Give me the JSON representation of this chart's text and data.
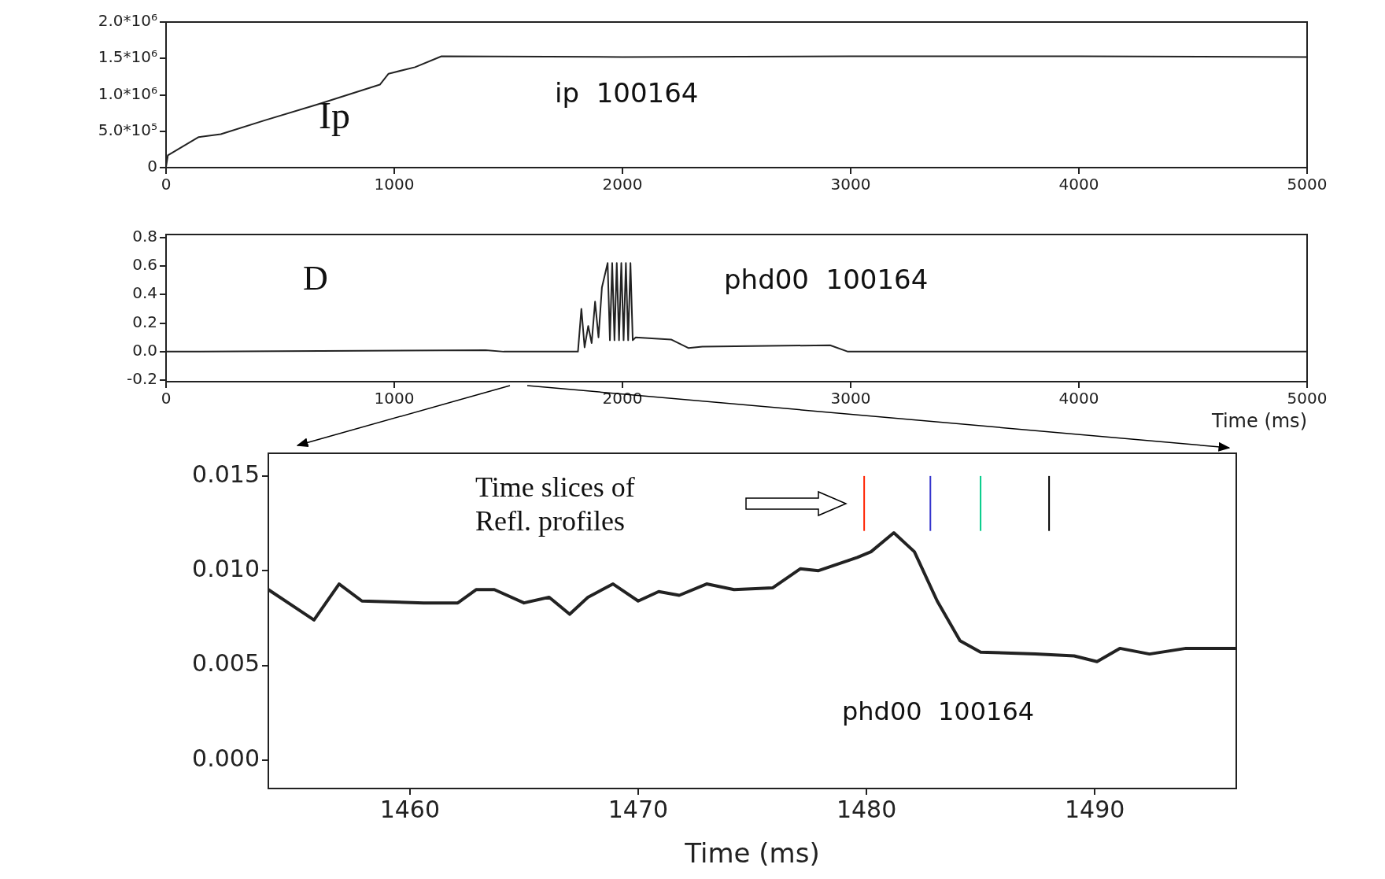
{
  "chart_data": [
    {
      "type": "line",
      "annotations": [
        "Ip",
        "ip  100164"
      ],
      "xlim": [
        0,
        5000
      ],
      "xticks": [
        0,
        1000,
        2000,
        3000,
        4000,
        5000
      ],
      "ylim": [
        0,
        2000000
      ],
      "yticks": [
        {
          "value": 0,
          "label": "0"
        },
        {
          "value": 500000,
          "label": "5.0*10⁵"
        },
        {
          "value": 1000000,
          "label": "1.0*10⁶"
        },
        {
          "value": 1500000,
          "label": "1.5*10⁶"
        },
        {
          "value": 2000000,
          "label": "2.0*10⁶"
        }
      ],
      "grid": false,
      "legend": false,
      "series": [
        {
          "color": "#222222",
          "x": [
            0,
            8,
            143,
            240,
            433,
            666,
            937,
            975,
            1091,
            1207,
            2000,
            3000,
            4000,
            5000
          ],
          "values": [
            10000,
            170000,
            420000,
            460000,
            650000,
            870000,
            1140000,
            1290000,
            1380000,
            1530000,
            1520000,
            1530000,
            1530000,
            1520000
          ]
        }
      ]
    },
    {
      "type": "line",
      "xlabel": "Time (ms)",
      "annotations": [
        "D",
        "phd00  100164"
      ],
      "xlim": [
        0,
        5000
      ],
      "xticks": [
        0,
        1000,
        2000,
        3000,
        4000,
        5000
      ],
      "ylim": [
        -0.21,
        0.82
      ],
      "yticks": [
        {
          "value": -0.2,
          "label": "-0.2"
        },
        {
          "value": 0,
          "label": "0.0"
        },
        {
          "value": 0.2,
          "label": "0.2"
        },
        {
          "value": 0.4,
          "label": "0.4"
        },
        {
          "value": 0.6,
          "label": "0.6"
        },
        {
          "value": 0.8,
          "label": "0.8"
        }
      ],
      "grid": false,
      "legend": false,
      "series": [
        {
          "color": "#222222",
          "x": [
            0,
            1400,
            1480,
            1805,
            1820,
            1834,
            1850,
            1865,
            1880,
            1895,
            1910,
            1935,
            1945,
            1955,
            1965,
            1975,
            1985,
            1995,
            2005,
            2015,
            2025,
            2035,
            2045,
            2058,
            2213,
            2290,
            2350,
            2910,
            2988,
            5000
          ],
          "values": [
            0,
            0.01,
            0.0,
            0.0,
            0.3,
            0.03,
            0.18,
            0.06,
            0.35,
            0.1,
            0.45,
            0.62,
            0.08,
            0.62,
            0.08,
            0.62,
            0.08,
            0.62,
            0.08,
            0.62,
            0.08,
            0.62,
            0.08,
            0.1,
            0.085,
            0.025,
            0.035,
            0.045,
            0.0,
            0.0
          ]
        }
      ]
    },
    {
      "type": "line",
      "xlabel": "Time (ms)",
      "annotations": [
        "Time slices of Refl. profiles",
        "phd00  100164"
      ],
      "xlim": [
        1453.8,
        1496.2
      ],
      "xticks": [
        1460,
        1470,
        1480,
        1490
      ],
      "ylim": [
        -0.0015,
        0.0162
      ],
      "yticks": [
        {
          "value": 0,
          "label": "0.000"
        },
        {
          "value": 0.005,
          "label": "0.005"
        },
        {
          "value": 0.01,
          "label": "0.010"
        },
        {
          "value": 0.015,
          "label": "0.015"
        }
      ],
      "grid": false,
      "legend": false,
      "series": [
        {
          "color": "#222222",
          "x": [
            1453.8,
            1455.8,
            1456.9,
            1457.9,
            1460.6,
            1462.1,
            1462.9,
            1463.7,
            1465.0,
            1466.1,
            1467.0,
            1467.8,
            1468.9,
            1470.0,
            1470.9,
            1471.8,
            1473.0,
            1474.2,
            1475.9,
            1477.1,
            1477.9,
            1479.6,
            1480.2,
            1481.2,
            1482.1,
            1483.1,
            1484.1,
            1485.0,
            1487.4,
            1489.1,
            1490.1,
            1491.1,
            1492.4,
            1494.0,
            1496.2
          ],
          "values": [
            0.009,
            0.0074,
            0.0093,
            0.0084,
            0.0083,
            0.0083,
            0.009,
            0.009,
            0.0083,
            0.0086,
            0.0077,
            0.0086,
            0.0093,
            0.0084,
            0.0089,
            0.0087,
            0.0093,
            0.009,
            0.0091,
            0.0101,
            0.01,
            0.0107,
            0.011,
            0.012,
            0.011,
            0.0084,
            0.0063,
            0.0057,
            0.0056,
            0.0055,
            0.0052,
            0.0059,
            0.0056,
            0.0059,
            0.0059
          ]
        },
        {
          "color": "#ff2200",
          "x": [
            1479.9,
            1479.9
          ],
          "values": [
            0.0121,
            0.015
          ]
        },
        {
          "color": "#3333cc",
          "x": [
            1482.8,
            1482.8
          ],
          "values": [
            0.0121,
            0.015
          ]
        },
        {
          "color": "#00cc88",
          "x": [
            1485.0,
            1485.0
          ],
          "values": [
            0.0121,
            0.015
          ]
        },
        {
          "color": "#000000",
          "x": [
            1488.0,
            1488.0
          ],
          "values": [
            0.0121,
            0.015
          ]
        }
      ]
    }
  ]
}
